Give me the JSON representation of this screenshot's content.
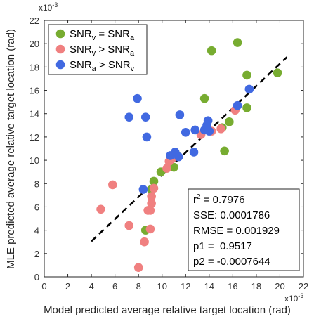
{
  "chart_data": {
    "type": "scatter",
    "xlabel": "Model predicted average relative target location (rad)",
    "ylabel": "MLE predicted average relative target location (rad)",
    "x_exponent": "x10",
    "x_exponent_power": "-3",
    "y_exponent": "x10",
    "y_exponent_power": "-3",
    "xlim": [
      0,
      22
    ],
    "ylim": [
      0,
      22
    ],
    "xticks": [
      "0",
      "2",
      "4",
      "6",
      "8",
      "10",
      "12",
      "14",
      "16",
      "18",
      "20",
      "22"
    ],
    "yticks": [
      "0",
      "2",
      "4",
      "6",
      "8",
      "10",
      "12",
      "14",
      "16",
      "18",
      "20",
      "22"
    ],
    "grid": false,
    "legend_position": "top-left",
    "series": [
      {
        "name": "SNRv = SNRa",
        "legend_main_1": "SNR",
        "legend_sub_1": "v",
        "legend_mid": " = SNR",
        "legend_sub_2": "a",
        "color": "#77AC30",
        "points": [
          [
            8.6,
            4.0
          ],
          [
            9.1,
            7.5
          ],
          [
            9.3,
            8.2
          ],
          [
            9.9,
            9.0
          ],
          [
            11.0,
            9.4
          ],
          [
            11.2,
            10.5
          ],
          [
            14.2,
            19.4
          ],
          [
            13.6,
            15.3
          ],
          [
            15.3,
            10.8
          ],
          [
            15.1,
            12.8
          ],
          [
            15.7,
            13.3
          ],
          [
            16.4,
            20.1
          ],
          [
            17.2,
            17.3
          ],
          [
            17.2,
            14.5
          ],
          [
            19.8,
            17.5
          ]
        ]
      },
      {
        "name": "SNRv > SNRa",
        "legend_main_1": "SNR",
        "legend_sub_1": "v",
        "legend_mid": " > SNR",
        "legend_sub_2": "a",
        "color": "#F08080",
        "points": [
          [
            4.8,
            5.8
          ],
          [
            5.8,
            7.9
          ],
          [
            7.2,
            4.4
          ],
          [
            8.0,
            0.8
          ],
          [
            8.5,
            3.0
          ],
          [
            8.8,
            5.7
          ],
          [
            9.0,
            4.1
          ],
          [
            9.0,
            5.7
          ],
          [
            9.1,
            6.3
          ],
          [
            9.1,
            6.9
          ],
          [
            9.3,
            7.6
          ],
          [
            10.4,
            9.3
          ],
          [
            10.6,
            9.9
          ],
          [
            10.8,
            10.1
          ],
          [
            13.3,
            12.2
          ],
          [
            14.2,
            12.5
          ],
          [
            15.0,
            12.7
          ],
          [
            16.2,
            14.3
          ]
        ]
      },
      {
        "name": "SNRa > SNRv",
        "legend_main_1": "SNR",
        "legend_sub_1": "a",
        "legend_mid": " > SNR",
        "legend_sub_2": "v",
        "color": "#4169E1",
        "points": [
          [
            7.2,
            13.7
          ],
          [
            7.9,
            15.3
          ],
          [
            8.4,
            7.5
          ],
          [
            8.6,
            13.7
          ],
          [
            8.7,
            12.0
          ],
          [
            10.7,
            10.4
          ],
          [
            11.1,
            10.7
          ],
          [
            11.4,
            10.3
          ],
          [
            11.5,
            13.9
          ],
          [
            12.0,
            12.4
          ],
          [
            12.7,
            10.7
          ],
          [
            12.8,
            12.6
          ],
          [
            13.6,
            12.6
          ],
          [
            13.8,
            13.0
          ],
          [
            13.9,
            13.4
          ],
          [
            14.0,
            12.5
          ],
          [
            16.4,
            14.7
          ],
          [
            17.4,
            16.1
          ]
        ]
      }
    ],
    "fit_line": {
      "x": [
        4.0,
        20.6
      ],
      "y": [
        3.05,
        18.85
      ],
      "style": "dashed",
      "color": "#000000"
    },
    "stats": {
      "r2_label": "r",
      "r2_sup": "2",
      "r2_value": " = 0.7976",
      "sse": "SSE: 0.0001786",
      "rmse": "RMSE = 0.001929",
      "p1": "p1 =  0.9517",
      "p2": "p2 = -0.0007644"
    }
  }
}
